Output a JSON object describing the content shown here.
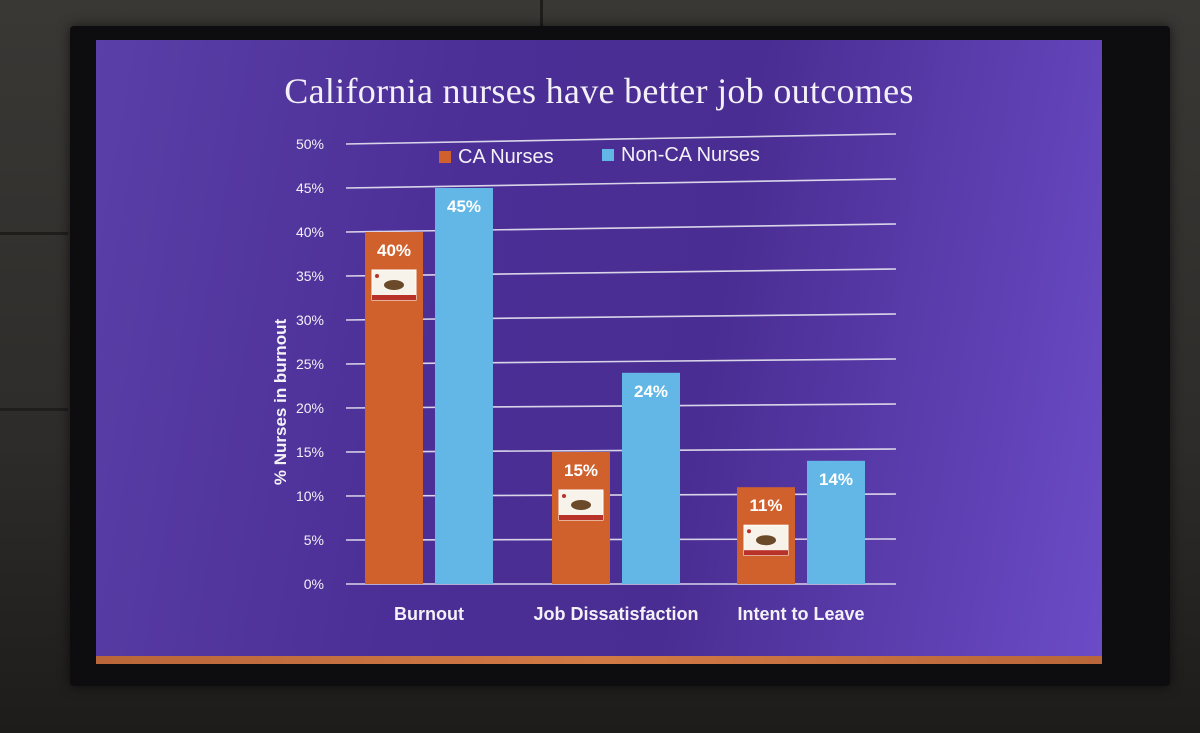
{
  "slide": {
    "title": "California nurses have better job outcomes"
  },
  "colors": {
    "ca": "#d1612c",
    "non_ca": "#62b7e6",
    "grid": "#e8e6f2",
    "text": "#f3f1f7"
  },
  "chart_data": {
    "type": "bar",
    "title": "California nurses have better job outcomes",
    "ylabel": "% Nurses in burnout",
    "xlabel": "",
    "ylim": [
      0,
      50
    ],
    "yticks": [
      "0%",
      "5%",
      "10%",
      "15%",
      "20%",
      "25%",
      "30%",
      "35%",
      "40%",
      "45%",
      "50%"
    ],
    "categories": [
      "Burnout",
      "Job Dissatisfaction",
      "Intent to Leave"
    ],
    "series": [
      {
        "name": "CA Nurses",
        "values": [
          40,
          15,
          11
        ],
        "labels": [
          "40%",
          "15%",
          "11%"
        ]
      },
      {
        "name": "Non-CA Nurses",
        "values": [
          45,
          24,
          14
        ],
        "labels": [
          "45%",
          "24%",
          "14%"
        ]
      }
    ],
    "legend": "top-center",
    "grid": true
  }
}
